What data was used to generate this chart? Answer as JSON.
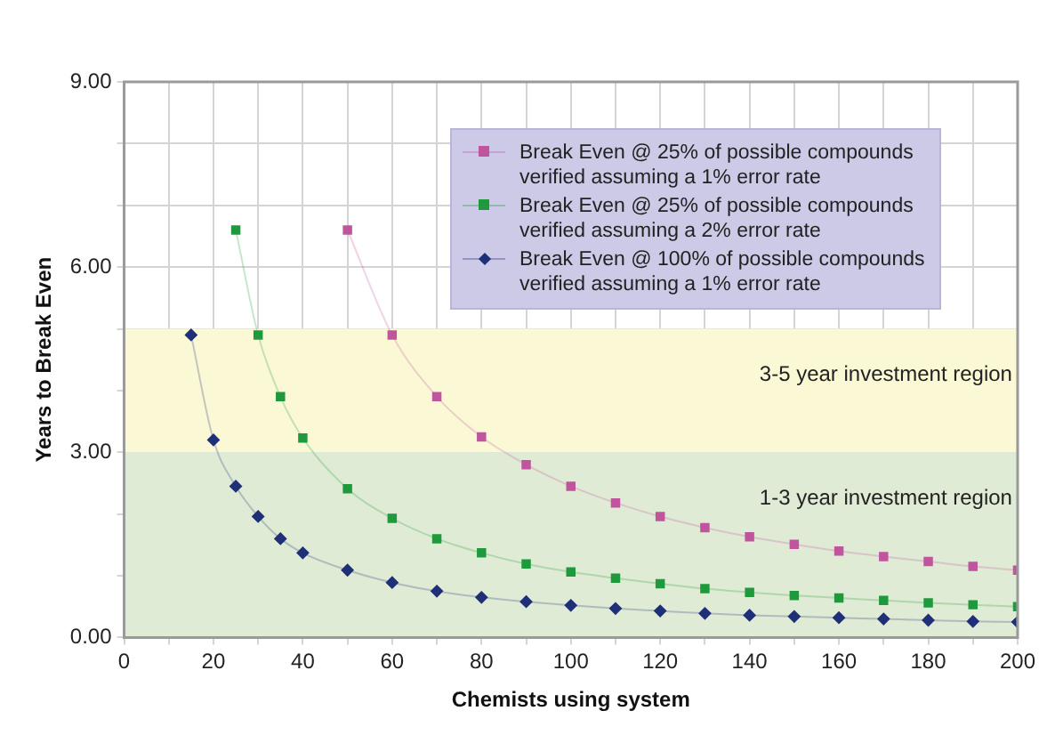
{
  "chart_data": {
    "type": "line",
    "xlabel": "Chemists using system",
    "ylabel": "Years to Break Even",
    "xlim": [
      0,
      200
    ],
    "xticks": [
      0,
      {
        "value": 10,
        "label": null
      },
      20,
      {
        "value": 30,
        "label": null
      },
      40,
      {
        "value": 50,
        "label": null
      },
      60,
      {
        "value": 70,
        "label": null
      },
      80,
      {
        "value": 90,
        "label": null
      },
      100,
      {
        "value": 110,
        "label": null
      },
      120,
      {
        "value": 130,
        "label": null
      },
      140,
      {
        "value": 150,
        "label": null
      },
      160,
      {
        "value": 170,
        "label": null
      },
      180,
      {
        "value": 190,
        "label": null
      },
      200
    ],
    "ylim": [
      0,
      9
    ],
    "yticks": [
      {
        "value": 0,
        "label": "0.00"
      },
      {
        "value": 1,
        "label": null
      },
      {
        "value": 2,
        "label": null
      },
      {
        "value": 3,
        "label": "3.00"
      },
      {
        "value": 4,
        "label": null
      },
      {
        "value": 5,
        "label": null
      },
      {
        "value": 6,
        "label": "6.00"
      },
      {
        "value": 7,
        "label": null
      },
      {
        "value": 8,
        "label": null
      },
      {
        "value": 9,
        "label": "9.00"
      }
    ],
    "grid": true,
    "legend": "top right",
    "bands": [
      {
        "axis": "y",
        "from": 3,
        "to": 5,
        "label": "3-5 year investment region",
        "color": "#fbf8d6"
      },
      {
        "axis": "y",
        "from": 0,
        "to": 3,
        "label": "1-3 year investment region",
        "color": "#dfebd4"
      }
    ],
    "series": [
      {
        "name": "Break Even @ 25%  of possible compounds verified assuming a 1% error rate",
        "color": "#c0559e",
        "marker": "square",
        "x": [
          50,
          60,
          70,
          80,
          90,
          100,
          110,
          120,
          130,
          140,
          150,
          160,
          170,
          180,
          190,
          200
        ],
        "values": [
          6.6,
          4.9,
          3.9,
          3.25,
          2.8,
          2.45,
          2.18,
          1.96,
          1.78,
          1.63,
          1.51,
          1.4,
          1.31,
          1.23,
          1.15,
          1.09
        ]
      },
      {
        "name": "Break Even @ 25% of possible compounds verified assuming a 2% error rate",
        "color": "#1e9a3c",
        "marker": "square",
        "x": [
          25,
          30,
          35,
          40,
          50,
          60,
          70,
          80,
          90,
          100,
          110,
          120,
          130,
          140,
          150,
          160,
          170,
          180,
          190,
          200
        ],
        "values": [
          6.6,
          4.9,
          3.9,
          3.23,
          2.41,
          1.93,
          1.6,
          1.37,
          1.19,
          1.06,
          0.96,
          0.87,
          0.79,
          0.73,
          0.68,
          0.64,
          0.6,
          0.56,
          0.53,
          0.5
        ]
      },
      {
        "name": "Break Even @ 100%  of possible compounds verified assuming a 1% error rate",
        "color": "#1f2f78",
        "marker": "diamond",
        "x": [
          15,
          20,
          25,
          30,
          35,
          40,
          50,
          60,
          70,
          80,
          90,
          100,
          110,
          120,
          130,
          140,
          150,
          160,
          170,
          180,
          190,
          200
        ],
        "values": [
          4.9,
          3.2,
          2.45,
          1.96,
          1.6,
          1.37,
          1.09,
          0.89,
          0.75,
          0.65,
          0.58,
          0.52,
          0.47,
          0.43,
          0.39,
          0.36,
          0.34,
          0.32,
          0.3,
          0.28,
          0.26,
          0.25
        ]
      }
    ]
  }
}
